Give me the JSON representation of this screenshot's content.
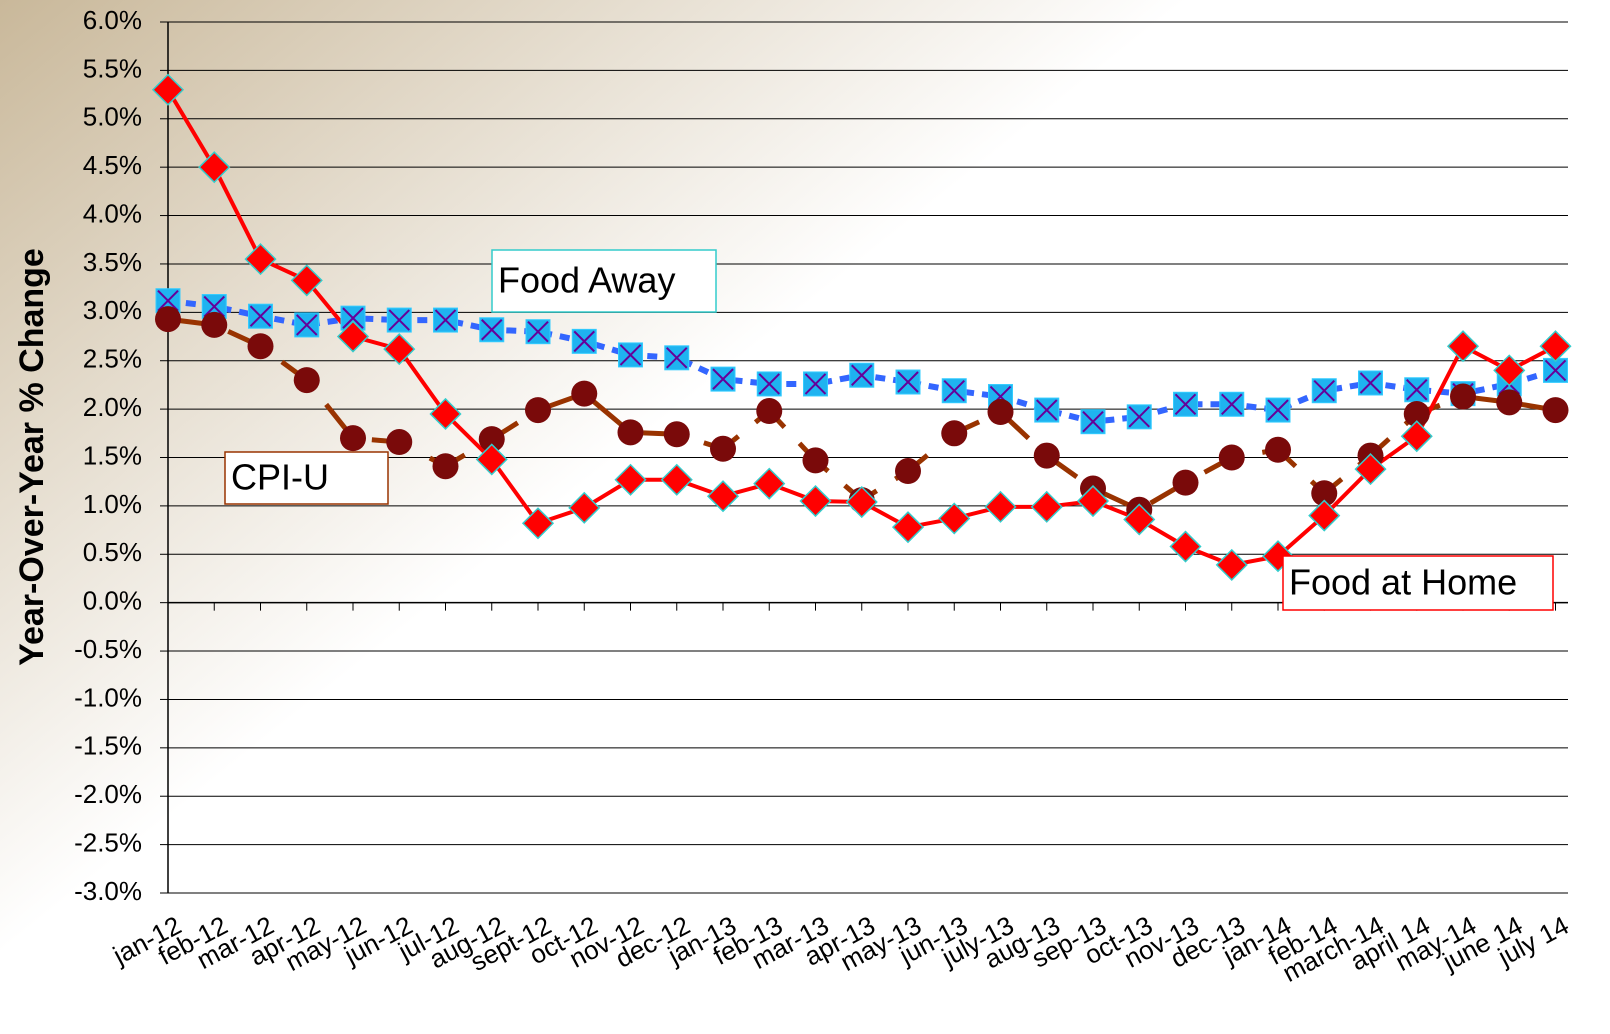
{
  "chart_data": {
    "type": "line",
    "y_label": "Year-Over-Year % Change",
    "categories": [
      "jan-12",
      "feb-12",
      "mar-12",
      "apr-12",
      "may-12",
      "jun-12",
      "jul-12",
      "aug-12",
      "sept-12",
      "oct-12",
      "nov-12",
      "dec-12",
      "jan-13",
      "feb-13",
      "mar-13",
      "apr-13",
      "may-13",
      "jun-13",
      "july-13",
      "aug-13",
      "sep-13",
      "oct-13",
      "nov-13",
      "dec-13",
      "jan-14",
      "feb-14",
      "march-14",
      "april 14",
      "may-14",
      "june 14",
      "july 14"
    ],
    "series": [
      {
        "name": "Food Away",
        "color": "#3366ff",
        "values": [
          3.12,
          3.06,
          2.96,
          2.87,
          2.94,
          2.92,
          2.92,
          2.82,
          2.8,
          2.7,
          2.56,
          2.53,
          2.31,
          2.26,
          2.26,
          2.35,
          2.28,
          2.19,
          2.13,
          1.99,
          1.87,
          1.92,
          2.05,
          2.05,
          1.99,
          2.19,
          2.27,
          2.2,
          2.16,
          2.26,
          2.4
        ]
      },
      {
        "name": "CPI-U",
        "color": "#993300",
        "values": [
          2.93,
          2.87,
          2.65,
          2.3,
          1.7,
          1.66,
          1.41,
          1.69,
          1.99,
          2.16,
          1.76,
          1.74,
          1.59,
          1.98,
          1.47,
          1.06,
          1.36,
          1.75,
          1.97,
          1.52,
          1.18,
          0.96,
          1.24,
          1.5,
          1.58,
          1.13,
          1.52,
          1.95,
          2.13,
          2.07,
          1.99
        ]
      },
      {
        "name": "Food at Home",
        "color": "#ff0000",
        "values": [
          5.3,
          4.5,
          3.55,
          3.33,
          2.75,
          2.62,
          1.95,
          1.48,
          0.82,
          0.98,
          1.27,
          1.27,
          1.1,
          1.23,
          1.05,
          1.04,
          0.78,
          0.87,
          0.99,
          0.99,
          1.05,
          0.86,
          0.58,
          0.39,
          0.48,
          0.9,
          1.38,
          1.72,
          2.65,
          2.4,
          2.65
        ]
      }
    ],
    "ylim": [
      -3,
      6
    ],
    "yticks": [
      {
        "value": 6,
        "label": "6.0%"
      },
      {
        "value": 5.5,
        "label": "5.5%"
      },
      {
        "value": 5,
        "label": "5.0%"
      },
      {
        "value": 4.5,
        "label": "4.5%"
      },
      {
        "value": 4,
        "label": "4.0%"
      },
      {
        "value": 3.5,
        "label": "3.5%"
      },
      {
        "value": 3,
        "label": "3.0%"
      },
      {
        "value": 2.5,
        "label": "2.5%"
      },
      {
        "value": 2,
        "label": "2.0%"
      },
      {
        "value": 1.5,
        "label": "1.5%"
      },
      {
        "value": 1,
        "label": "1.0%"
      },
      {
        "value": 0.5,
        "label": "0.5%"
      },
      {
        "value": 0,
        "label": "0.0%"
      },
      {
        "value": -0.5,
        "label": "-0.5%"
      },
      {
        "value": -1,
        "label": "-1.0%"
      },
      {
        "value": -1.5,
        "label": "-1.5%"
      },
      {
        "value": -2,
        "label": "-2.0%"
      },
      {
        "value": -2.5,
        "label": "-2.5%"
      },
      {
        "value": -3,
        "label": "-3.0%"
      }
    ],
    "grid": true
  }
}
